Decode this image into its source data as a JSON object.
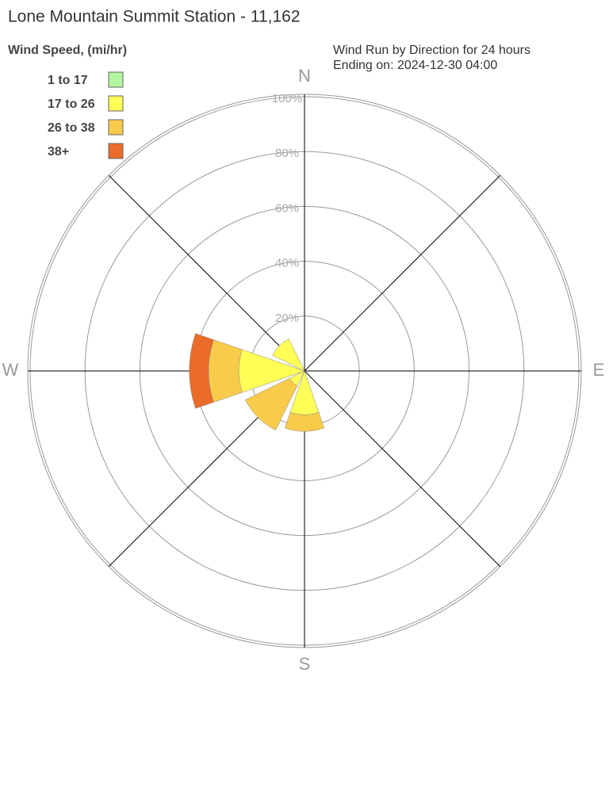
{
  "chart_data": {
    "type": "wind-rose",
    "title": "Lone Mountain Summit Station - 11,162",
    "legend_title": "Wind Speed, (mi/hr)",
    "subtitle": [
      "Wind Run by Direction for 24 hours",
      "Ending on: 2024-12-30 04:00"
    ],
    "categories": [
      "N",
      null,
      "E",
      null,
      "S",
      null,
      "W",
      null
    ],
    "directions": [
      0,
      45,
      90,
      135,
      180,
      225,
      270,
      315
    ],
    "rlim": [
      0,
      100
    ],
    "rticks": [
      {
        "value": 20,
        "label": "20%"
      },
      {
        "value": 40,
        "label": "40%"
      },
      {
        "value": 60,
        "label": "60%"
      },
      {
        "value": 80,
        "label": "80%"
      },
      {
        "value": 100,
        "label": "100%"
      }
    ],
    "series": [
      {
        "name": "1 to 17",
        "color": "#b3f5a0",
        "values": [
          0,
          0,
          0,
          0,
          0,
          0,
          0,
          0
        ]
      },
      {
        "name": "17 to 26",
        "color": "#fefe57",
        "values": [
          0,
          0,
          0,
          0,
          16,
          6,
          24,
          13
        ]
      },
      {
        "name": "26 to 38",
        "color": "#f8cb4a",
        "values": [
          0,
          0,
          0,
          0,
          6,
          18,
          11,
          0
        ]
      },
      {
        "name": "38+",
        "color": "#eb6b2b",
        "values": [
          0,
          0,
          0,
          0,
          0,
          0,
          7,
          0
        ]
      }
    ]
  }
}
